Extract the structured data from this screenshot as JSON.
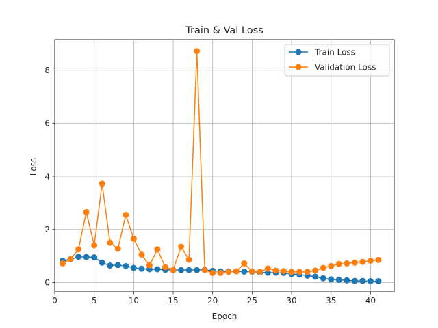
{
  "chart_data": {
    "type": "line",
    "title": "Train & Val Loss",
    "xlabel": "Epoch",
    "ylabel": "Loss",
    "xlim": [
      -0.0,
      43.0
    ],
    "ylim": [
      -0.35,
      9.15
    ],
    "xticks": [
      0,
      5,
      10,
      15,
      20,
      25,
      30,
      35,
      40
    ],
    "yticks": [
      0,
      2,
      4,
      6,
      8
    ],
    "grid": true,
    "legend_position": "top-right",
    "x": [
      1,
      2,
      3,
      4,
      5,
      6,
      7,
      8,
      9,
      10,
      11,
      12,
      13,
      14,
      15,
      16,
      17,
      18,
      19,
      20,
      21,
      22,
      23,
      24,
      25,
      26,
      27,
      28,
      29,
      30,
      31,
      32,
      33,
      34,
      35,
      36,
      37,
      38,
      39,
      40,
      41
    ],
    "series": [
      {
        "name": "Train Loss",
        "color": "#1f77b4",
        "values": [
          0.82,
          0.88,
          0.97,
          0.96,
          0.95,
          0.75,
          0.64,
          0.66,
          0.62,
          0.55,
          0.52,
          0.5,
          0.5,
          0.48,
          0.47,
          0.47,
          0.47,
          0.47,
          0.48,
          0.44,
          0.42,
          0.42,
          0.42,
          0.41,
          0.41,
          0.38,
          0.37,
          0.37,
          0.36,
          0.32,
          0.3,
          0.26,
          0.22,
          0.16,
          0.12,
          0.1,
          0.08,
          0.06,
          0.06,
          0.05,
          0.05
        ]
      },
      {
        "name": "Validation Loss",
        "color": "#ff7f0e",
        "values": [
          0.72,
          0.88,
          1.25,
          2.65,
          1.4,
          3.72,
          1.5,
          1.27,
          2.55,
          1.65,
          1.05,
          0.65,
          1.25,
          0.58,
          0.47,
          1.35,
          0.86,
          8.72,
          0.47,
          0.36,
          0.36,
          0.4,
          0.42,
          0.72,
          0.42,
          0.4,
          0.53,
          0.45,
          0.43,
          0.4,
          0.4,
          0.4,
          0.45,
          0.55,
          0.62,
          0.7,
          0.72,
          0.75,
          0.78,
          0.82,
          0.85
        ]
      }
    ]
  }
}
